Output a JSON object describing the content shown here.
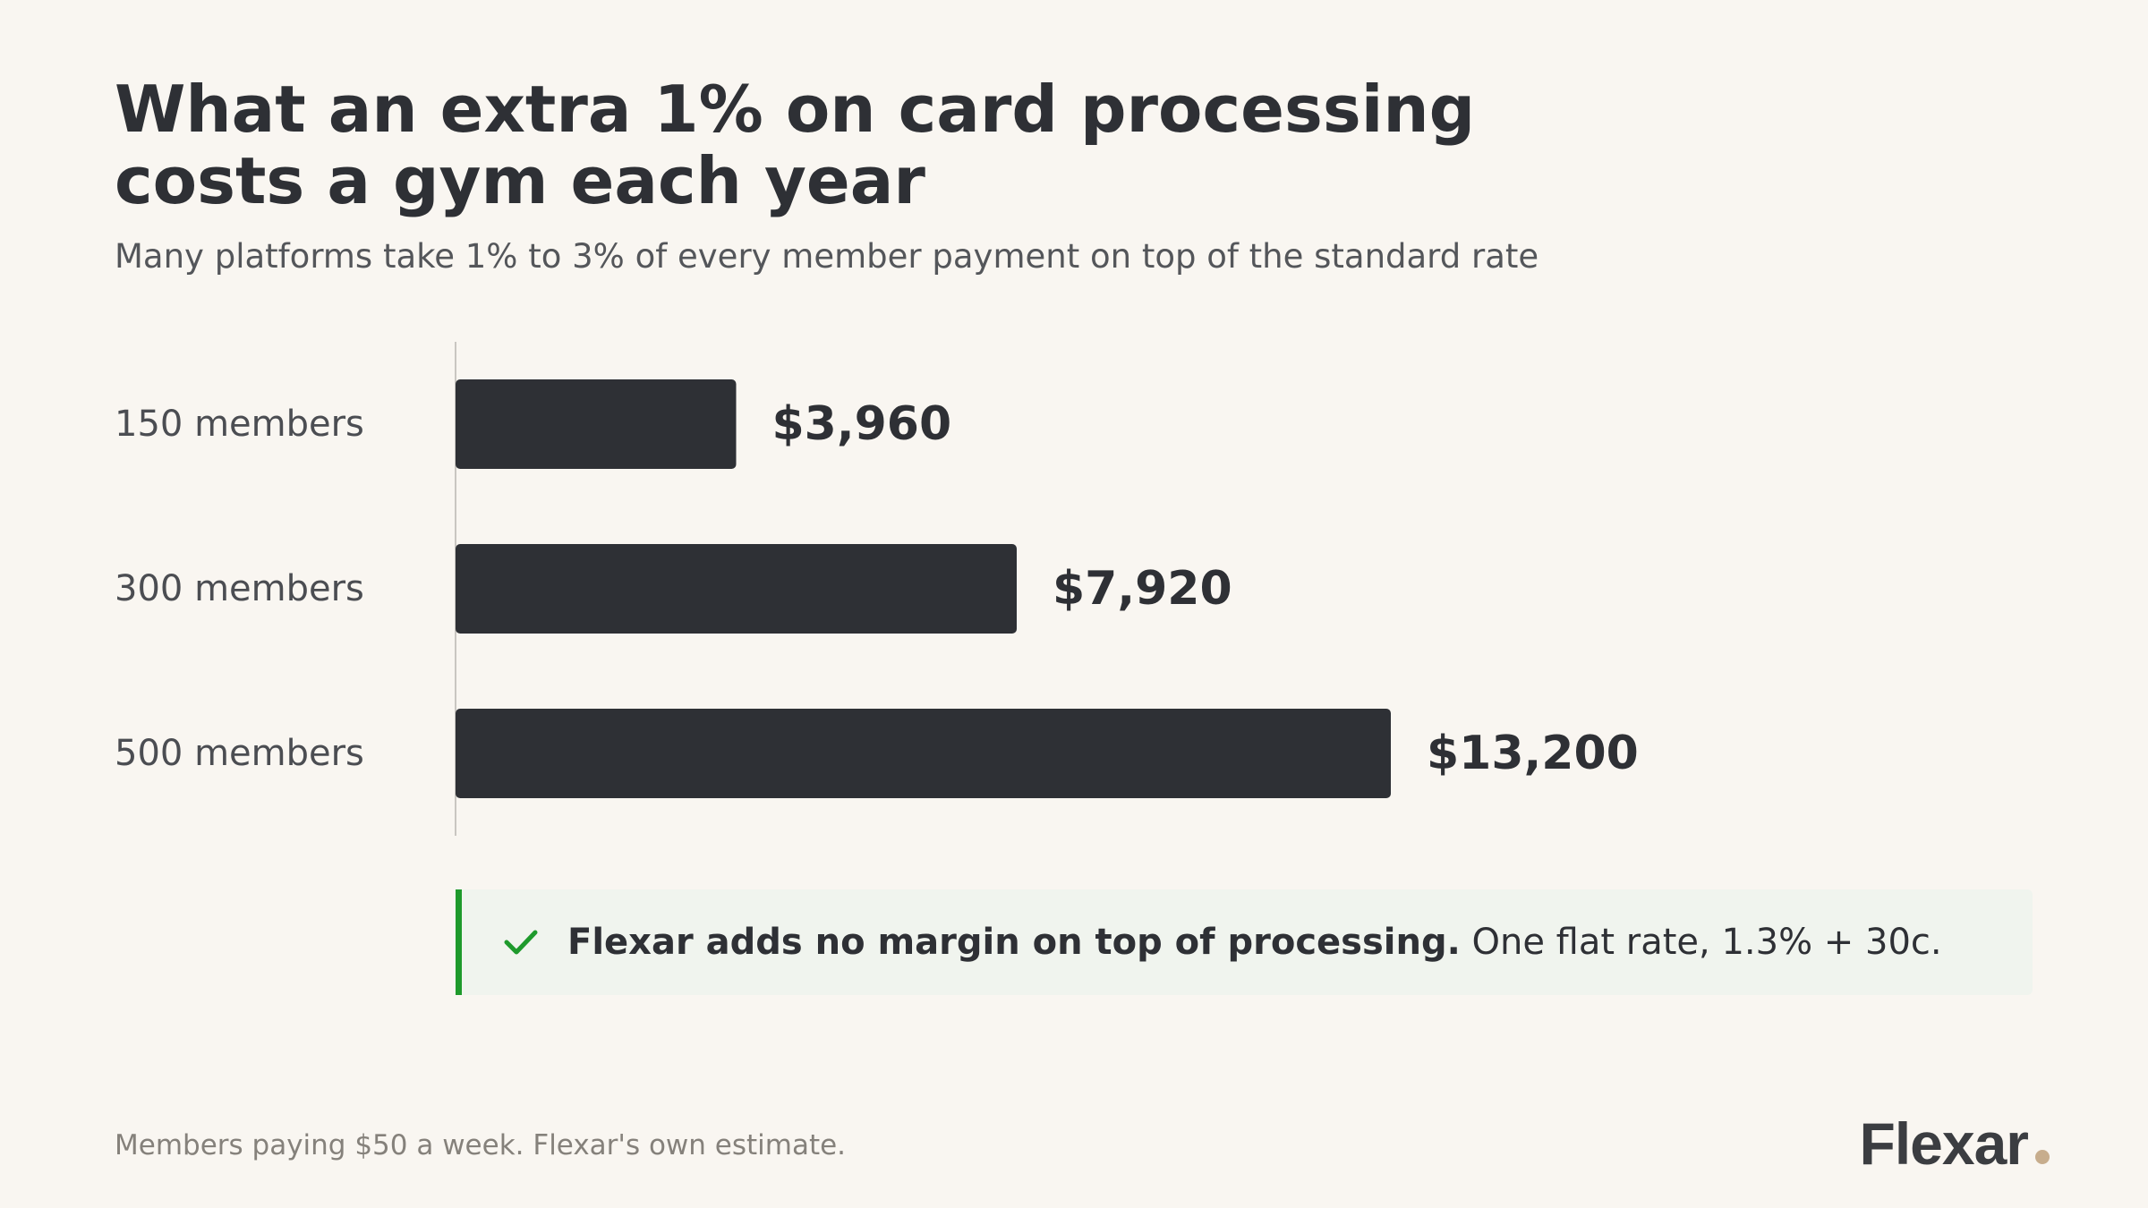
{
  "header": {
    "title_line1": "What an extra 1% on card processing",
    "title_line2": "costs a gym each year",
    "subtitle": "Many platforms take 1% to 3% of every member payment on top of the standard rate"
  },
  "chart_data": {
    "type": "bar",
    "orientation": "horizontal",
    "categories": [
      "150 members",
      "300 members",
      "500 members"
    ],
    "values": [
      3960,
      7920,
      13200
    ],
    "value_labels": [
      "$3,960",
      "$7,920",
      "$13,200"
    ],
    "title": "What an extra 1% on card processing costs a gym each year",
    "subtitle": "Many platforms take 1% to 3% of every member payment on top of the standard rate",
    "xlim": [
      0,
      13200
    ],
    "grid": false,
    "bar_color": "#2e3035"
  },
  "callout": {
    "bold_text": "Flexar adds no margin on top of processing.",
    "text": "One flat rate, 1.3% + 30c.",
    "icon": "check-icon",
    "accent_color": "#1e9a2c"
  },
  "footnote": "Members paying $50 a week. Flexar's own estimate.",
  "logo": {
    "wordmark": "Flexar",
    "dot_color": "#c7ad8d"
  }
}
